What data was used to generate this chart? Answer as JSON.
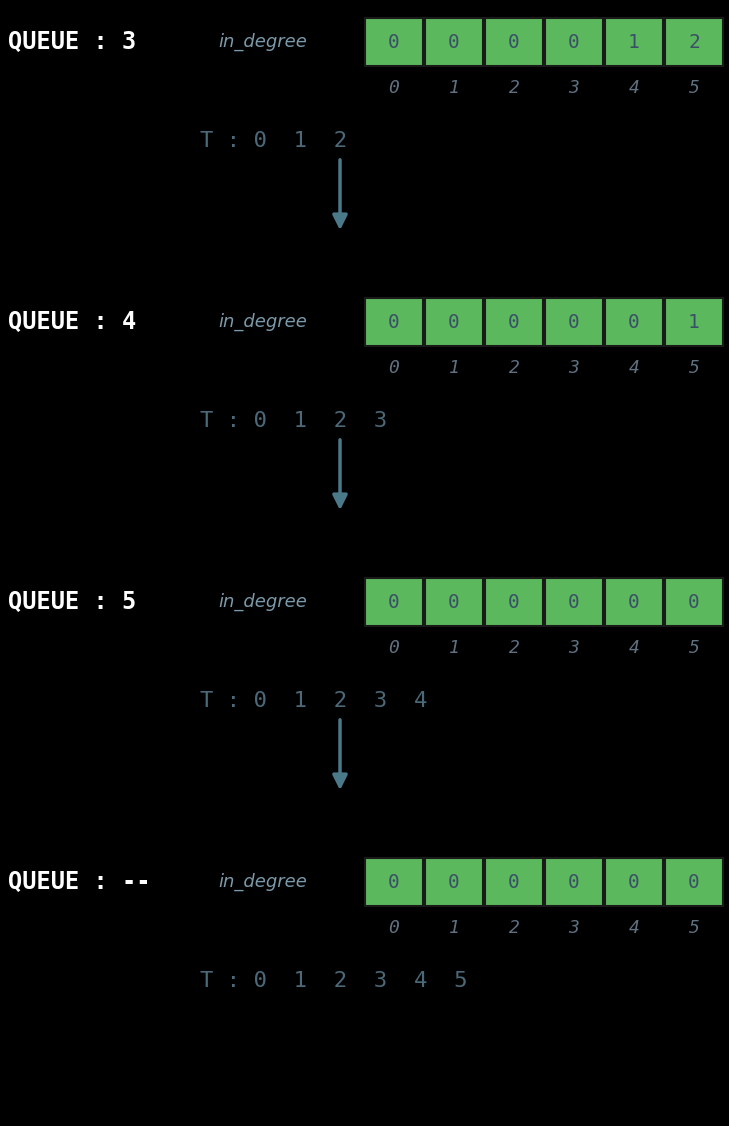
{
  "background_color": "#000000",
  "cell_color": "#5cb85c",
  "cell_edge_color": "#1a1a1a",
  "cell_text_color": "#3a5068",
  "index_text_color": "#607080",
  "queue_label_color": "#ffffff",
  "in_degree_italic_color": "#7a9aaa",
  "arrow_color": "#4a7a8a",
  "t_text_color": "#4a6a7a",
  "sections": [
    {
      "queue_label": "QUEUE : 3",
      "in_degree": [
        0,
        0,
        0,
        0,
        1,
        2
      ],
      "t_label": "T : 0  1  2"
    },
    {
      "queue_label": "QUEUE : 4",
      "in_degree": [
        0,
        0,
        0,
        0,
        0,
        1
      ],
      "t_label": "T : 0  1  2  3"
    },
    {
      "queue_label": "QUEUE : 5",
      "in_degree": [
        0,
        0,
        0,
        0,
        0,
        0
      ],
      "t_label": "T : 0  1  2  3  4"
    },
    {
      "queue_label": "QUEUE : --",
      "in_degree": [
        0,
        0,
        0,
        0,
        0,
        0
      ],
      "t_label": "T : 0  1  2  3  4  5"
    }
  ],
  "indices": [
    "0",
    "1",
    "2",
    "3",
    "4",
    "5"
  ],
  "n_sections": 4
}
